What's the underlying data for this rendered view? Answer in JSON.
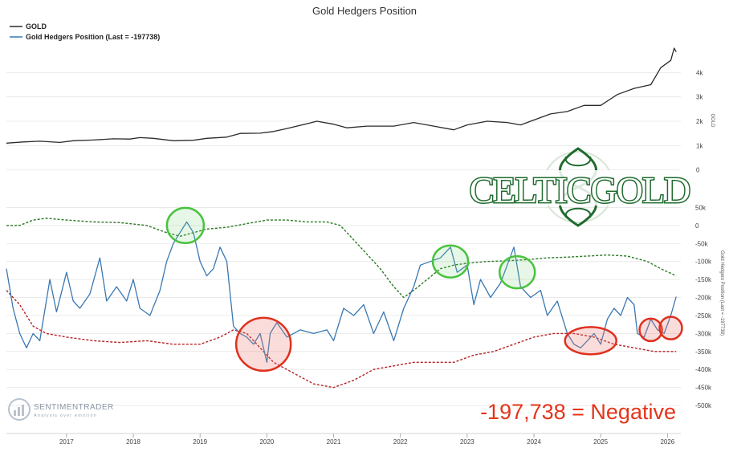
{
  "chart_data": {
    "type": "line",
    "title": "Gold Hedgers Position",
    "legend": {
      "placement": "top-left",
      "entries": [
        "GOLD",
        "Gold Hedgers Position (Last = -197738)"
      ]
    },
    "x_ticks": [
      "2017",
      "2018",
      "2019",
      "2020",
      "2021",
      "2022",
      "2023",
      "2024",
      "2025",
      "2026"
    ],
    "panels": [
      {
        "name": "gold",
        "ylabel": "GOLD",
        "ylim": [
          -800,
          5000
        ],
        "y_ticks": [
          "0",
          "1k",
          "2k",
          "3k",
          "4k"
        ],
        "series": [
          {
            "name": "GOLD",
            "color": "#2b2b2b",
            "points": [
              [
                2016.1,
                1100
              ],
              [
                2016.35,
                1150
              ],
              [
                2016.6,
                1180
              ],
              [
                2016.9,
                1130
              ],
              [
                2017.1,
                1200
              ],
              [
                2017.4,
                1230
              ],
              [
                2017.7,
                1280
              ],
              [
                2017.95,
                1270
              ],
              [
                2018.1,
                1330
              ],
              [
                2018.3,
                1300
              ],
              [
                2018.6,
                1200
              ],
              [
                2018.9,
                1220
              ],
              [
                2019.1,
                1300
              ],
              [
                2019.4,
                1350
              ],
              [
                2019.6,
                1500
              ],
              [
                2019.9,
                1510
              ],
              [
                2020.1,
                1580
              ],
              [
                2020.3,
                1700
              ],
              [
                2020.6,
                1900
              ],
              [
                2020.75,
                2000
              ],
              [
                2021.0,
                1880
              ],
              [
                2021.2,
                1730
              ],
              [
                2021.5,
                1800
              ],
              [
                2021.9,
                1800
              ],
              [
                2022.2,
                1950
              ],
              [
                2022.5,
                1800
              ],
              [
                2022.8,
                1650
              ],
              [
                2023.0,
                1850
              ],
              [
                2023.3,
                2000
              ],
              [
                2023.6,
                1950
              ],
              [
                2023.8,
                1850
              ],
              [
                2024.0,
                2050
              ],
              [
                2024.25,
                2300
              ],
              [
                2024.5,
                2400
              ],
              [
                2024.75,
                2650
              ],
              [
                2025.0,
                2650
              ],
              [
                2025.25,
                3100
              ],
              [
                2025.5,
                3350
              ],
              [
                2025.75,
                3500
              ],
              [
                2025.9,
                4200
              ],
              [
                2026.05,
                4500
              ],
              [
                2026.1,
                5000
              ],
              [
                2026.13,
                4850
              ]
            ]
          }
        ]
      },
      {
        "name": "hedgers",
        "ylabel": "Gold Hedgers Position (Last = -197738)",
        "ylim": [
          -560000,
          100000
        ],
        "y_ticks": [
          "50k",
          "0",
          "-50k",
          "-100k",
          "-150k",
          "-200k",
          "-250k",
          "-300k",
          "-350k",
          "-400k",
          "-450k",
          "-500k"
        ],
        "series": [
          {
            "name": "Gold Hedgers Position (Last = -197738)",
            "color": "#3a78b3",
            "points": [
              [
                2016.1,
                -120000
              ],
              [
                2016.2,
                -230000
              ],
              [
                2016.3,
                -300000
              ],
              [
                2016.4,
                -340000
              ],
              [
                2016.5,
                -300000
              ],
              [
                2016.6,
                -320000
              ],
              [
                2016.75,
                -150000
              ],
              [
                2016.85,
                -240000
              ],
              [
                2017.0,
                -130000
              ],
              [
                2017.1,
                -210000
              ],
              [
                2017.2,
                -230000
              ],
              [
                2017.35,
                -190000
              ],
              [
                2017.5,
                -90000
              ],
              [
                2017.6,
                -210000
              ],
              [
                2017.75,
                -170000
              ],
              [
                2017.9,
                -210000
              ],
              [
                2018.0,
                -150000
              ],
              [
                2018.1,
                -230000
              ],
              [
                2018.25,
                -250000
              ],
              [
                2018.4,
                -180000
              ],
              [
                2018.5,
                -100000
              ],
              [
                2018.6,
                -50000
              ],
              [
                2018.7,
                -20000
              ],
              [
                2018.8,
                10000
              ],
              [
                2018.9,
                -20000
              ],
              [
                2019.0,
                -100000
              ],
              [
                2019.1,
                -140000
              ],
              [
                2019.2,
                -120000
              ],
              [
                2019.3,
                -60000
              ],
              [
                2019.4,
                -100000
              ],
              [
                2019.5,
                -280000
              ],
              [
                2019.6,
                -300000
              ],
              [
                2019.7,
                -310000
              ],
              [
                2019.8,
                -330000
              ],
              [
                2019.9,
                -300000
              ],
              [
                2020.0,
                -380000
              ],
              [
                2020.05,
                -300000
              ],
              [
                2020.15,
                -270000
              ],
              [
                2020.3,
                -310000
              ],
              [
                2020.5,
                -290000
              ],
              [
                2020.7,
                -300000
              ],
              [
                2020.9,
                -290000
              ],
              [
                2021.0,
                -320000
              ],
              [
                2021.15,
                -230000
              ],
              [
                2021.3,
                -250000
              ],
              [
                2021.45,
                -220000
              ],
              [
                2021.6,
                -300000
              ],
              [
                2021.75,
                -240000
              ],
              [
                2021.9,
                -320000
              ],
              [
                2022.05,
                -230000
              ],
              [
                2022.2,
                -170000
              ],
              [
                2022.3,
                -110000
              ],
              [
                2022.45,
                -100000
              ],
              [
                2022.6,
                -90000
              ],
              [
                2022.75,
                -60000
              ],
              [
                2022.85,
                -130000
              ],
              [
                2023.0,
                -110000
              ],
              [
                2023.1,
                -220000
              ],
              [
                2023.2,
                -150000
              ],
              [
                2023.35,
                -200000
              ],
              [
                2023.5,
                -160000
              ],
              [
                2023.6,
                -110000
              ],
              [
                2023.7,
                -60000
              ],
              [
                2023.8,
                -170000
              ],
              [
                2023.95,
                -200000
              ],
              [
                2024.1,
                -180000
              ],
              [
                2024.2,
                -250000
              ],
              [
                2024.35,
                -210000
              ],
              [
                2024.5,
                -300000
              ],
              [
                2024.6,
                -330000
              ],
              [
                2024.7,
                -340000
              ],
              [
                2024.8,
                -320000
              ],
              [
                2024.9,
                -300000
              ],
              [
                2025.0,
                -330000
              ],
              [
                2025.1,
                -260000
              ],
              [
                2025.2,
                -230000
              ],
              [
                2025.3,
                -250000
              ],
              [
                2025.4,
                -200000
              ],
              [
                2025.5,
                -220000
              ],
              [
                2025.55,
                -300000
              ],
              [
                2025.65,
                -310000
              ],
              [
                2025.75,
                -260000
              ],
              [
                2025.85,
                -290000
              ],
              [
                2025.95,
                -300000
              ],
              [
                2026.05,
                -250000
              ],
              [
                2026.13,
                -197738
              ]
            ]
          },
          {
            "name": "",
            "color": "#2a7a22",
            "dashed": true,
            "points": [
              [
                2016.1,
                0
              ],
              [
                2016.3,
                0
              ],
              [
                2016.5,
                15000
              ],
              [
                2016.7,
                20000
              ],
              [
                2017.0,
                15000
              ],
              [
                2017.4,
                10000
              ],
              [
                2017.8,
                8000
              ],
              [
                2018.2,
                0
              ],
              [
                2018.5,
                -20000
              ],
              [
                2018.7,
                -30000
              ],
              [
                2018.9,
                -20000
              ],
              [
                2019.1,
                -10000
              ],
              [
                2019.4,
                -5000
              ],
              [
                2019.7,
                5000
              ],
              [
                2020.0,
                15000
              ],
              [
                2020.3,
                15000
              ],
              [
                2020.6,
                10000
              ],
              [
                2020.9,
                10000
              ],
              [
                2021.1,
                0
              ],
              [
                2021.3,
                -40000
              ],
              [
                2021.5,
                -80000
              ],
              [
                2021.7,
                -120000
              ],
              [
                2021.9,
                -170000
              ],
              [
                2022.05,
                -200000
              ],
              [
                2022.2,
                -180000
              ],
              [
                2022.4,
                -150000
              ],
              [
                2022.6,
                -120000
              ],
              [
                2022.8,
                -110000
              ],
              [
                2023.0,
                -105000
              ],
              [
                2023.3,
                -100000
              ],
              [
                2023.6,
                -98000
              ],
              [
                2023.9,
                -95000
              ],
              [
                2024.2,
                -90000
              ],
              [
                2024.5,
                -88000
              ],
              [
                2024.8,
                -85000
              ],
              [
                2025.1,
                -82000
              ],
              [
                2025.4,
                -85000
              ],
              [
                2025.7,
                -100000
              ],
              [
                2025.9,
                -120000
              ],
              [
                2026.13,
                -140000
              ]
            ]
          },
          {
            "name": "",
            "color": "#b52124",
            "dashed": true,
            "points": [
              [
                2016.1,
                -180000
              ],
              [
                2016.3,
                -220000
              ],
              [
                2016.5,
                -280000
              ],
              [
                2016.7,
                -300000
              ],
              [
                2017.0,
                -310000
              ],
              [
                2017.4,
                -320000
              ],
              [
                2017.8,
                -325000
              ],
              [
                2018.2,
                -320000
              ],
              [
                2018.6,
                -330000
              ],
              [
                2019.0,
                -330000
              ],
              [
                2019.3,
                -310000
              ],
              [
                2019.5,
                -290000
              ],
              [
                2019.7,
                -300000
              ],
              [
                2019.9,
                -340000
              ],
              [
                2020.1,
                -380000
              ],
              [
                2020.4,
                -410000
              ],
              [
                2020.7,
                -440000
              ],
              [
                2021.0,
                -450000
              ],
              [
                2021.3,
                -430000
              ],
              [
                2021.6,
                -400000
              ],
              [
                2021.9,
                -390000
              ],
              [
                2022.2,
                -380000
              ],
              [
                2022.5,
                -380000
              ],
              [
                2022.8,
                -380000
              ],
              [
                2023.1,
                -360000
              ],
              [
                2023.4,
                -350000
              ],
              [
                2023.7,
                -330000
              ],
              [
                2024.0,
                -310000
              ],
              [
                2024.3,
                -300000
              ],
              [
                2024.6,
                -300000
              ],
              [
                2024.9,
                -310000
              ],
              [
                2025.2,
                -330000
              ],
              [
                2025.5,
                -340000
              ],
              [
                2025.8,
                -350000
              ],
              [
                2026.13,
                -350000
              ]
            ]
          }
        ]
      }
    ],
    "highlights": [
      {
        "type": "circle",
        "color": "green",
        "center": [
          2018.78,
          0
        ]
      },
      {
        "type": "circle",
        "color": "green",
        "center": [
          2022.75,
          -100000
        ]
      },
      {
        "type": "circle",
        "color": "green",
        "center": [
          2023.75,
          -130000
        ]
      },
      {
        "type": "circle",
        "color": "red",
        "center": [
          2019.95,
          -330000
        ]
      },
      {
        "type": "circle",
        "color": "red",
        "center": [
          2024.85,
          -320000
        ]
      },
      {
        "type": "circle",
        "color": "red",
        "center": [
          2025.75,
          -290000
        ]
      },
      {
        "type": "circle",
        "color": "red",
        "center": [
          2026.05,
          -285000
        ]
      }
    ]
  },
  "logo": {
    "text": "CELTICGOLD",
    "color": "#1f6b2e"
  },
  "watermark": {
    "name": "SENTIMENTRADER",
    "sub": "Analysis over emotion"
  },
  "annotation": {
    "text": "-197,738 = Negative",
    "color": "#e5341a"
  }
}
